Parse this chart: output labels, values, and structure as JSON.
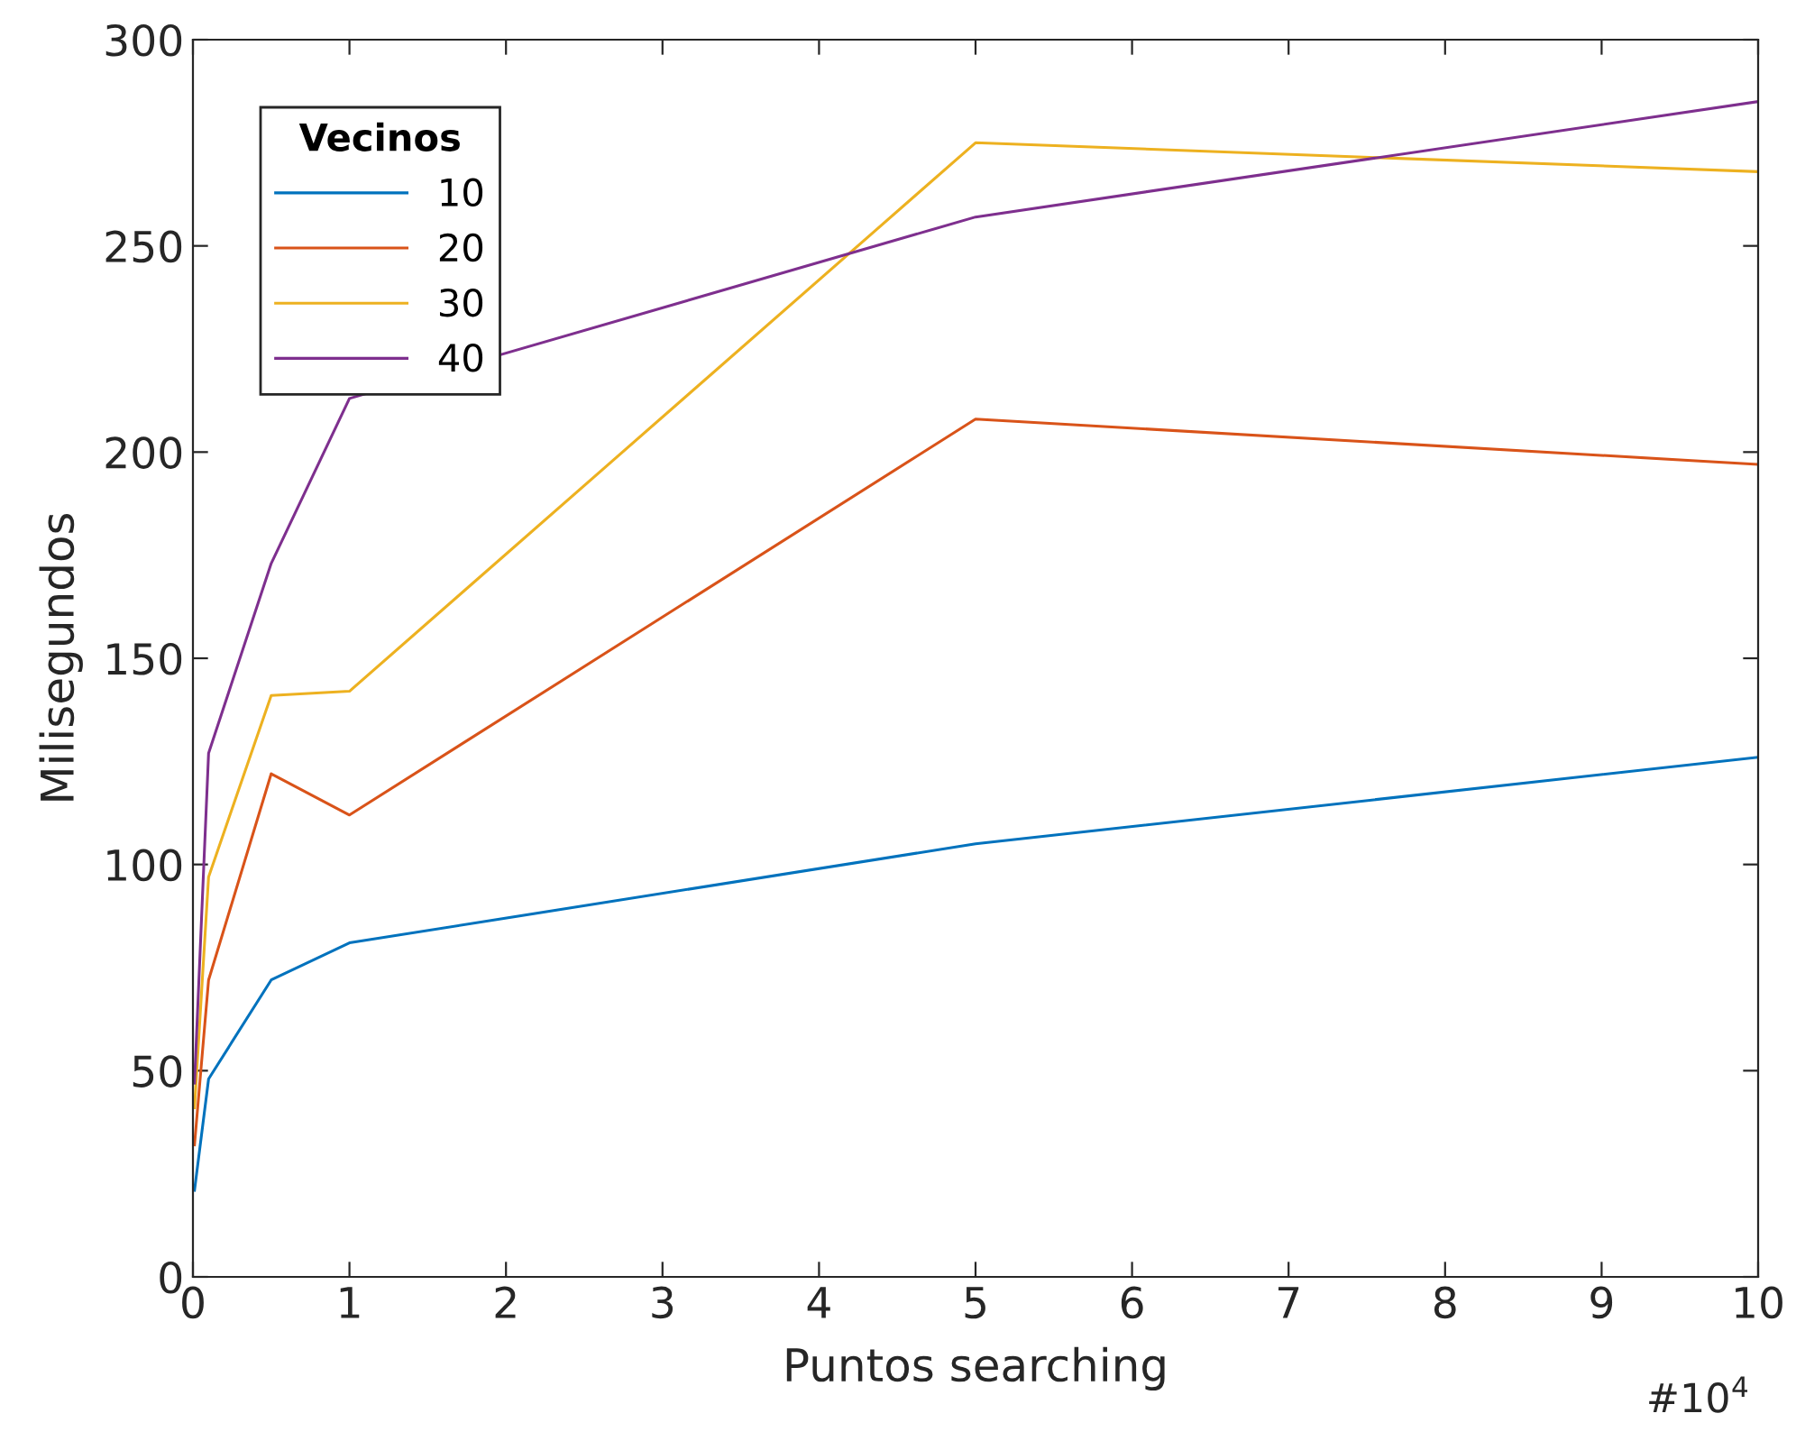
{
  "chart_data": {
    "type": "line",
    "xlabel": "Puntos searching",
    "ylabel": "Milisegundos",
    "legend_title": "Vecinos",
    "legend": "top left",
    "grid": false,
    "x": [
      0.01,
      0.1,
      0.5,
      1,
      5,
      10
    ],
    "xlim": [
      0,
      10
    ],
    "xticks": [
      0,
      1,
      2,
      3,
      4,
      5,
      6,
      7,
      8,
      9,
      10
    ],
    "ylim": [
      0,
      300
    ],
    "yticks": [
      0,
      50,
      100,
      150,
      200,
      250,
      300
    ],
    "annotations": [
      "#10$^{4}$"
    ],
    "series": [
      {
        "name": "10",
        "color": "#0072bd",
        "values": [
          21,
          48,
          72,
          81,
          105,
          126
        ]
      },
      {
        "name": "20",
        "color": "#d95319",
        "values": [
          32,
          72,
          122,
          112,
          208,
          197
        ]
      },
      {
        "name": "30",
        "color": "#edb120",
        "values": [
          41,
          97,
          141,
          142,
          275,
          268
        ]
      },
      {
        "name": "40",
        "color": "#7e2f8e",
        "values": [
          47,
          127,
          173,
          213,
          257,
          285
        ]
      }
    ]
  }
}
